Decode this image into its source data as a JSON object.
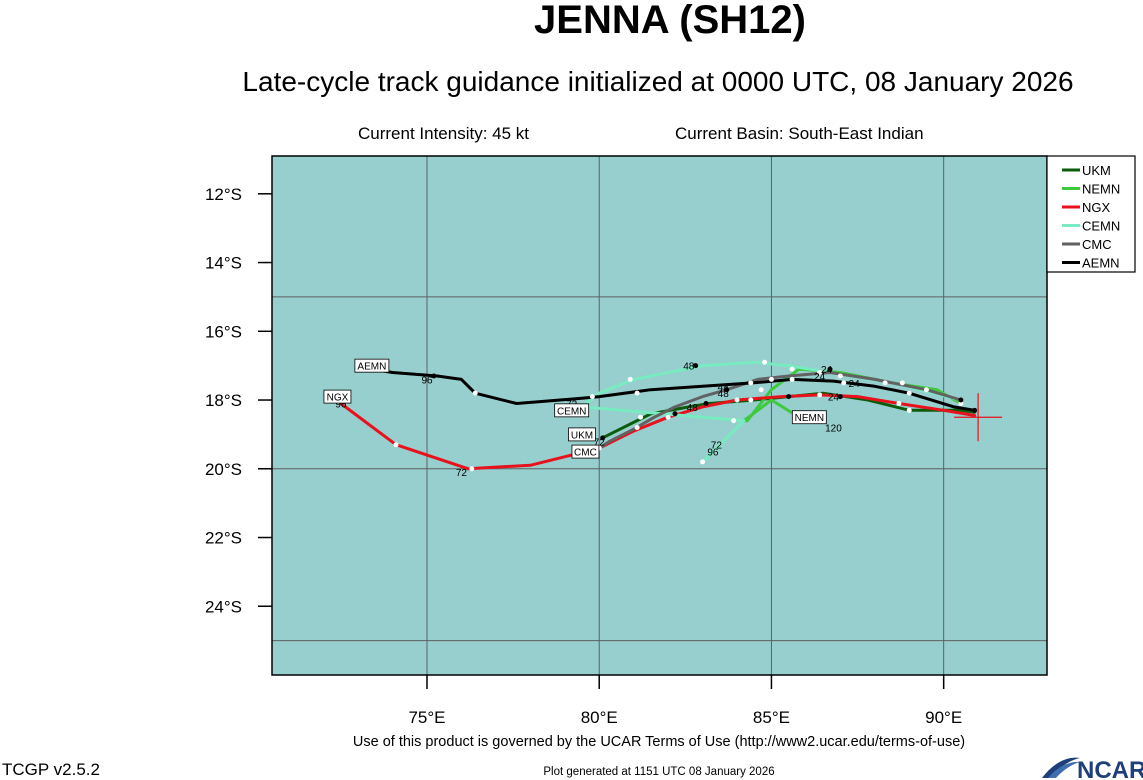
{
  "title": "JENNA (SH12)",
  "subtitle": "Late-cycle track guidance initialized at 0000 UTC, 08 January 2026",
  "current_intensity": "Current Intensity: 45 kt",
  "current_basin": "Current Basin: South-East Indian",
  "terms": "Use of this product is governed by the UCAR Terms of Use (http://www2.ucar.edu/terms-of-use)",
  "version": "TCGP v2.5.2",
  "generated": "Plot generated at 1151 UTC   08 January 2026",
  "logo_text": "NCAR",
  "colors": {
    "ocean": "#97cfcf",
    "grid": "#5f5f5f",
    "UKM": "#0b5d0b",
    "NEMN": "#3ec93e",
    "NGX": "#e8121c",
    "CEMN": "#79ebc0",
    "CMC": "#626262",
    "AEMN": "#000000",
    "storm_marker": "#e8121c"
  },
  "chart_data": {
    "type": "line",
    "projection": "lon-lat map",
    "xlim": [
      70.5,
      93
    ],
    "ylim": [
      -26,
      -10.9
    ],
    "x_ticks": [
      {
        "value": 75,
        "label": "75°E"
      },
      {
        "value": 80,
        "label": "80°E"
      },
      {
        "value": 85,
        "label": "85°E"
      },
      {
        "value": 90,
        "label": "90°E"
      }
    ],
    "y_ticks": [
      {
        "value": -12,
        "label": "12°S"
      },
      {
        "value": -14,
        "label": "14°S"
      },
      {
        "value": -16,
        "label": "16°S"
      },
      {
        "value": -18,
        "label": "18°S"
      },
      {
        "value": -20,
        "label": "20°S"
      },
      {
        "value": -22,
        "label": "22°S"
      },
      {
        "value": -24,
        "label": "24°S"
      }
    ],
    "grid_lon": [
      75,
      80,
      85,
      90
    ],
    "grid_lat": [
      -15,
      -20,
      -25
    ],
    "legend_position": "right",
    "current_position": {
      "lon": 91.0,
      "lat": -18.5
    },
    "series": [
      {
        "name": "UKM",
        "track": [
          [
            90.9,
            -18.35
          ],
          [
            90.5,
            -18.3
          ],
          [
            89.0,
            -18.3
          ],
          [
            87.8,
            -18.0
          ],
          [
            86.5,
            -17.8
          ],
          [
            85.5,
            -17.9
          ],
          [
            84.5,
            -18.0
          ],
          [
            83.2,
            -18.1
          ],
          [
            82.6,
            -18.2
          ],
          [
            81.5,
            -18.4
          ],
          [
            80.1,
            -19.1
          ]
        ],
        "dots": [
          [
            89.0,
            -18.3,
            "w"
          ],
          [
            87.0,
            -17.9,
            "b"
          ],
          [
            85.5,
            -17.9,
            "b"
          ],
          [
            84.4,
            -18.0,
            "w"
          ],
          [
            83.1,
            -18.1,
            "b"
          ],
          [
            82.2,
            -18.4,
            "b"
          ],
          [
            81.2,
            -18.5,
            "w"
          ],
          [
            80.1,
            -19.1,
            "b"
          ]
        ],
        "labels": [
          {
            "lon": 86.8,
            "lat": -17.9,
            "text": "24"
          },
          {
            "lon": 82.7,
            "lat": -18.2,
            "text": "48"
          }
        ],
        "end_box": {
          "lon": 79.5,
          "lat": -19.0,
          "text": "UKM"
        }
      },
      {
        "name": "NEMN",
        "track": [
          [
            90.5,
            -18.1
          ],
          [
            89.8,
            -17.7
          ],
          [
            88.5,
            -17.5
          ],
          [
            87.0,
            -17.2
          ],
          [
            85.8,
            -17.1
          ],
          [
            85.0,
            -17.7
          ],
          [
            84.3,
            -18.6
          ],
          [
            84.2,
            -18.6
          ],
          [
            85.0,
            -18.0
          ],
          [
            85.8,
            -18.5
          ]
        ],
        "dots": [
          [
            90.5,
            -18.1,
            "w"
          ],
          [
            88.8,
            -17.5,
            "w"
          ],
          [
            87.0,
            -17.3,
            "w"
          ],
          [
            85.6,
            -17.1,
            "w"
          ],
          [
            84.7,
            -17.7,
            "w"
          ],
          [
            83.9,
            -18.6,
            "w"
          ]
        ],
        "labels": [],
        "end_box": {
          "lon": 86.1,
          "lat": -18.5,
          "text": "NEMN"
        }
      },
      {
        "name": "NGX",
        "track": [
          [
            90.9,
            -18.45
          ],
          [
            90.0,
            -18.3
          ],
          [
            88.7,
            -18.1
          ],
          [
            87.5,
            -17.9
          ],
          [
            86.4,
            -17.85
          ],
          [
            85.3,
            -17.9
          ],
          [
            84.0,
            -18.0
          ],
          [
            83.0,
            -18.2
          ],
          [
            82.0,
            -18.5
          ],
          [
            81.0,
            -18.9
          ],
          [
            80.0,
            -19.4
          ],
          [
            78.0,
            -19.9
          ],
          [
            77.0,
            -19.95
          ],
          [
            76.2,
            -20.0
          ],
          [
            74.1,
            -19.3
          ],
          [
            72.5,
            -18.1
          ]
        ],
        "dots": [
          [
            88.7,
            -18.1,
            "w"
          ],
          [
            86.4,
            -17.85,
            "w"
          ],
          [
            84.0,
            -18.0,
            "w"
          ],
          [
            82.0,
            -18.5,
            "w"
          ],
          [
            80.0,
            -19.4,
            "w"
          ],
          [
            76.3,
            -20.0,
            "w"
          ],
          [
            74.1,
            -19.3,
            "w"
          ]
        ],
        "labels": [
          {
            "lon": 76.0,
            "lat": -20.1,
            "text": "72"
          },
          {
            "lon": 72.5,
            "lat": -18.1,
            "text": "96"
          }
        ],
        "end_box": {
          "lon": 72.4,
          "lat": -17.9,
          "text": "NGX"
        }
      },
      {
        "name": "CEMN",
        "track": [
          [
            90.5,
            -18.0
          ],
          [
            88.5,
            -17.5
          ],
          [
            86.7,
            -17.2
          ],
          [
            85.5,
            -17.0
          ],
          [
            84.5,
            -16.9
          ],
          [
            83.0,
            -17.0
          ],
          [
            81.0,
            -17.4
          ],
          [
            80.0,
            -17.8
          ],
          [
            79.5,
            -18.2
          ],
          [
            84.2,
            -18.6
          ],
          [
            83.0,
            -19.8
          ]
        ],
        "dots": [
          [
            88.3,
            -17.5,
            "w"
          ],
          [
            86.4,
            -17.2,
            "w"
          ],
          [
            84.8,
            -16.9,
            "w"
          ],
          [
            82.8,
            -17.0,
            "b"
          ],
          [
            80.9,
            -17.4,
            "w"
          ],
          [
            79.8,
            -17.9,
            "w"
          ],
          [
            83.0,
            -19.8,
            "w"
          ]
        ],
        "labels": [
          {
            "lon": 82.6,
            "lat": -17.0,
            "text": "48"
          },
          {
            "lon": 79.4,
            "lat": -18.2,
            "text": "72"
          }
        ],
        "end_box": {
          "lon": 79.2,
          "lat": -18.3,
          "text": "CEMN"
        }
      },
      {
        "name": "CMC",
        "track": [
          [
            90.5,
            -18.0
          ],
          [
            89.5,
            -17.7
          ],
          [
            88.0,
            -17.4
          ],
          [
            86.7,
            -17.2
          ],
          [
            85.5,
            -17.3
          ],
          [
            84.6,
            -17.4
          ],
          [
            83.7,
            -17.7
          ],
          [
            83.0,
            -17.9
          ],
          [
            82.2,
            -18.2
          ],
          [
            81.6,
            -18.5
          ],
          [
            81.0,
            -18.85
          ],
          [
            80.3,
            -19.2
          ],
          [
            80.0,
            -19.4
          ]
        ],
        "dots": [
          [
            90.5,
            -18.0,
            "b"
          ],
          [
            89.5,
            -17.7,
            "w"
          ],
          [
            86.7,
            -17.1,
            "b"
          ],
          [
            85.0,
            -17.4,
            "w"
          ],
          [
            83.7,
            -17.7,
            "b"
          ],
          [
            81.1,
            -18.8,
            "w"
          ]
        ],
        "labels": [
          {
            "lon": 86.4,
            "lat": -17.3,
            "text": "24"
          },
          {
            "lon": 83.6,
            "lat": -17.6,
            "text": "48"
          },
          {
            "lon": 80.0,
            "lat": -19.2,
            "text": "72"
          }
        ],
        "end_box": {
          "lon": 79.6,
          "lat": -19.5,
          "text": "CMC"
        }
      },
      {
        "name": "AEMN",
        "track": [
          [
            90.9,
            -18.3
          ],
          [
            90.3,
            -18.2
          ],
          [
            89.0,
            -17.8
          ],
          [
            88.0,
            -17.6
          ],
          [
            86.8,
            -17.45
          ],
          [
            85.6,
            -17.4
          ],
          [
            84.5,
            -17.5
          ],
          [
            83.0,
            -17.6
          ],
          [
            81.5,
            -17.7
          ],
          [
            80.0,
            -17.9
          ],
          [
            79.5,
            -17.95
          ],
          [
            77.6,
            -18.1
          ],
          [
            76.4,
            -17.8
          ],
          [
            76.0,
            -17.4
          ],
          [
            75.3,
            -17.3
          ],
          [
            74.0,
            -17.2
          ],
          [
            73.4,
            -17.1
          ]
        ],
        "dots": [
          [
            90.9,
            -18.3,
            "b"
          ],
          [
            89.0,
            -17.8,
            "w"
          ],
          [
            87.1,
            -17.5,
            "w"
          ],
          [
            85.6,
            -17.4,
            "w"
          ],
          [
            84.4,
            -17.5,
            "w"
          ],
          [
            81.1,
            -17.8,
            "w"
          ],
          [
            76.4,
            -17.8,
            "w"
          ],
          [
            75.2,
            -17.3,
            "b"
          ]
        ],
        "labels": [
          {
            "lon": 87.4,
            "lat": -17.5,
            "text": "24"
          },
          {
            "lon": 83.6,
            "lat": -17.8,
            "text": "48"
          },
          {
            "lon": 79.2,
            "lat": -18.1,
            "text": "72"
          },
          {
            "lon": 75.0,
            "lat": -17.4,
            "text": "96"
          }
        ],
        "end_box": {
          "lon": 73.4,
          "lat": -17.0,
          "text": "AEMN"
        }
      }
    ],
    "extra_labels": [
      {
        "lon": 86.6,
        "lat": -17.1,
        "text": "24"
      },
      {
        "lon": 83.4,
        "lat": -19.3,
        "text": "72"
      },
      {
        "lon": 83.3,
        "lat": -19.5,
        "text": "96"
      },
      {
        "lon": 86.8,
        "lat": -18.8,
        "text": "120"
      }
    ]
  }
}
